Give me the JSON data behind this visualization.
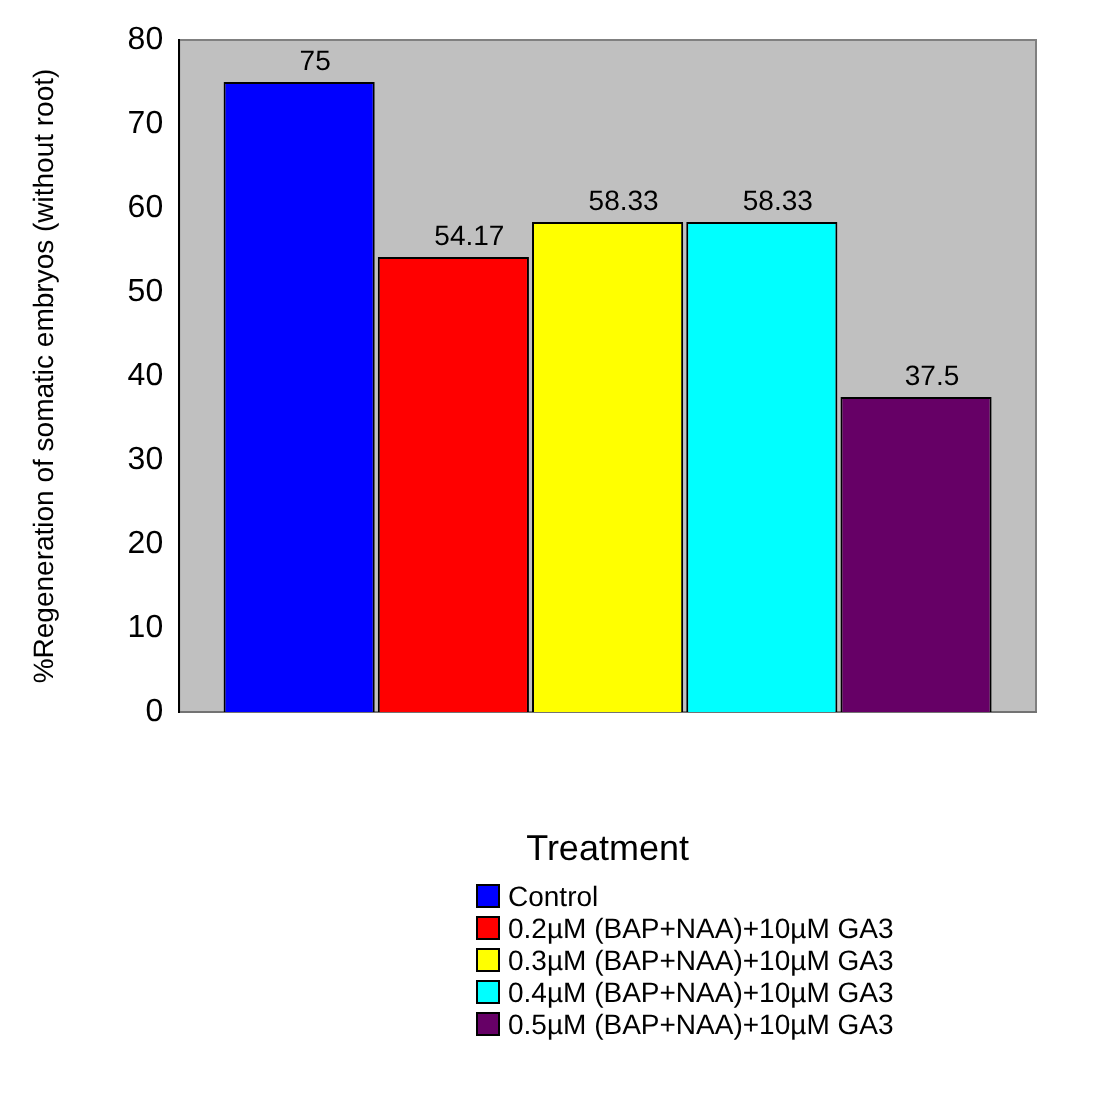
{
  "chart_data": {
    "type": "bar",
    "xlabel": "Treatment",
    "ylabel": "%Regeneration of somatic embryos (without root)",
    "categories": [
      null
    ],
    "series": [
      {
        "name": "Control",
        "color": "#0000ff",
        "values": [
          75
        ]
      },
      {
        "name": "0.2µM (BAP+NAA)+10µM GA3",
        "color": "#ff0000",
        "values": [
          54.17
        ]
      },
      {
        "name": "0.3µM (BAP+NAA)+10µM GA3",
        "color": "#ffff00",
        "values": [
          58.33
        ]
      },
      {
        "name": "0.4µM (BAP+NAA)+10µM GA3",
        "color": "#00ffff",
        "values": [
          58.33
        ]
      },
      {
        "name": "0.5µM (BAP+NAA)+10µM GA3",
        "color": "#660066",
        "values": [
          37.5
        ]
      }
    ],
    "ylim": [
      0,
      80
    ],
    "yticks": [
      0,
      10,
      20,
      30,
      40,
      50,
      60,
      70,
      80
    ],
    "data_labels": true,
    "grid": false,
    "legend": "bottom"
  }
}
